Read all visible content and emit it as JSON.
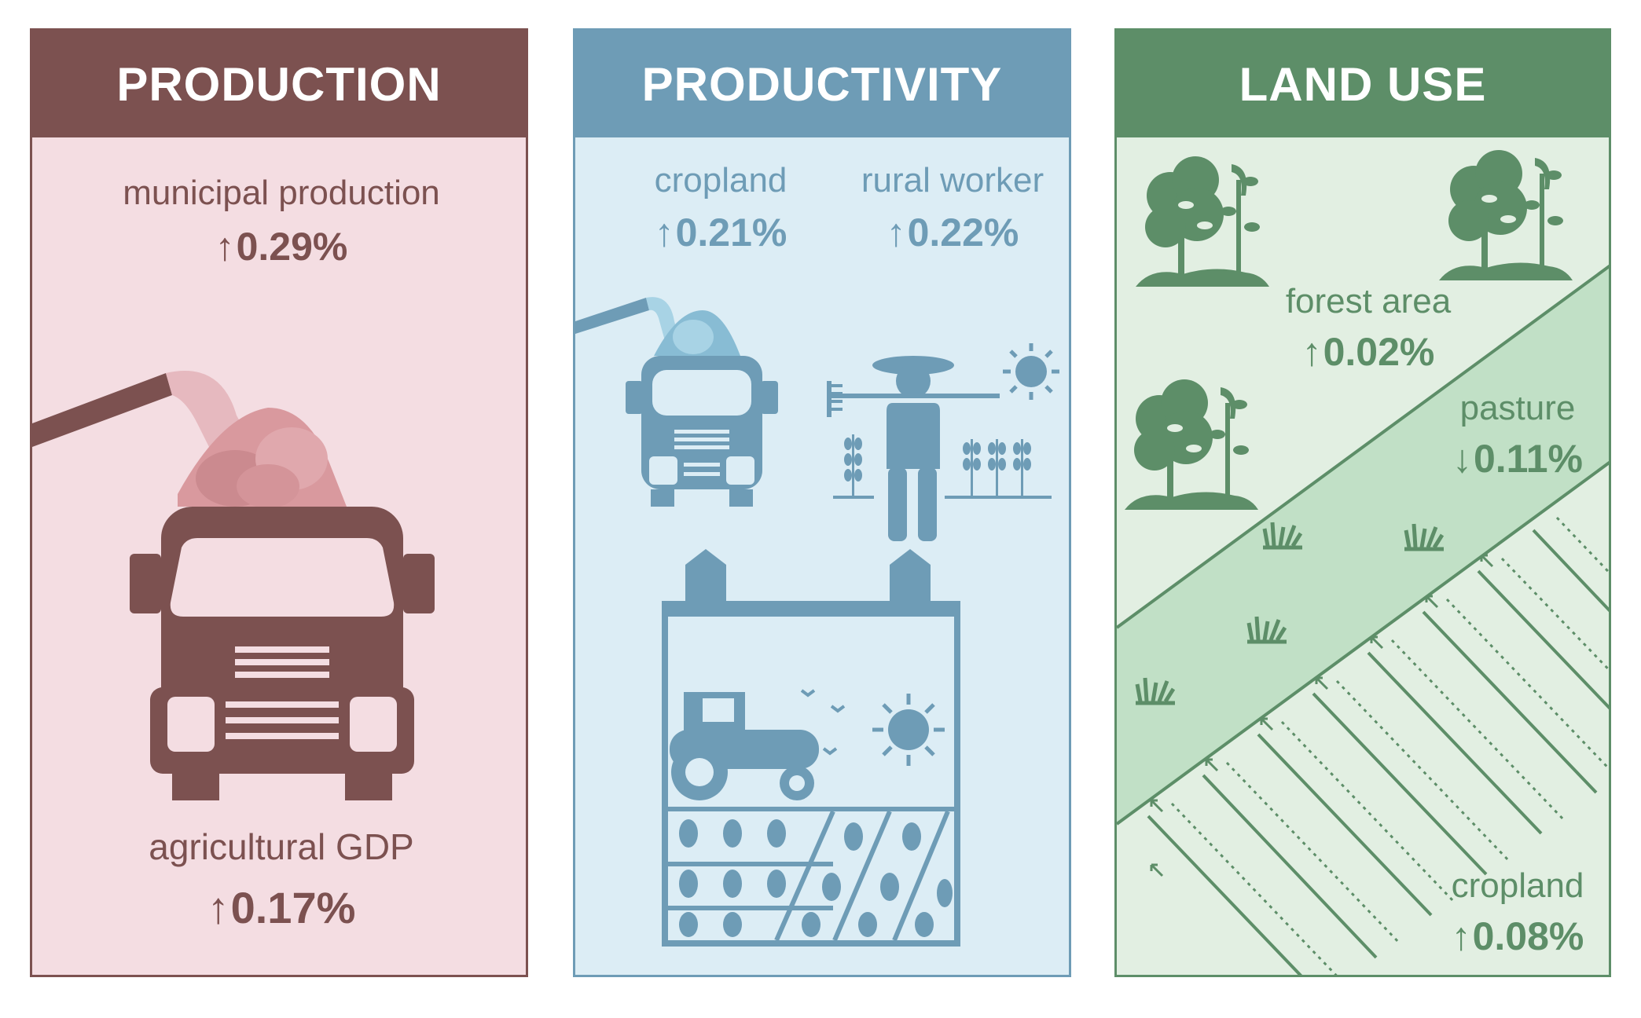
{
  "colors": {
    "production_dark": "#7c5150",
    "production_light": "#f4dde2",
    "productivity_dark": "#6e9cb6",
    "productivity_light": "#dcedf5",
    "landuse_dark": "#5d8e68",
    "landuse_light": "#e2efe2",
    "landuse_pasture": "#c1e0c6"
  },
  "panels": {
    "production": {
      "title": "PRODUCTION",
      "municipal_label": "municipal production",
      "municipal_arrow": "↑",
      "municipal_value": "0.29%",
      "gdp_label": "agricultural GDP",
      "gdp_arrow": "↑",
      "gdp_value": "0.17%",
      "icon": "harvest-truck-icon"
    },
    "productivity": {
      "title": "PRODUCTIVITY",
      "cropland_label": "cropland",
      "cropland_arrow": "↑",
      "cropland_value": "0.21%",
      "worker_label": "rural worker",
      "worker_arrow": "↑",
      "worker_value": "0.22%",
      "icons": [
        "harvest-truck-icon",
        "farmer-icon",
        "sun-icon",
        "farm-field-icon"
      ]
    },
    "land_use": {
      "title": "LAND USE",
      "forest_label": "forest area",
      "forest_arrow": "↑",
      "forest_value": "0.02%",
      "pasture_label": "pasture",
      "pasture_arrow": "↓",
      "pasture_value": "0.11%",
      "cropland_label": "cropland",
      "cropland_arrow": "↑",
      "cropland_value": "0.08%",
      "icons": [
        "tree-icon",
        "grass-icon",
        "crop-rows-icon"
      ]
    }
  }
}
